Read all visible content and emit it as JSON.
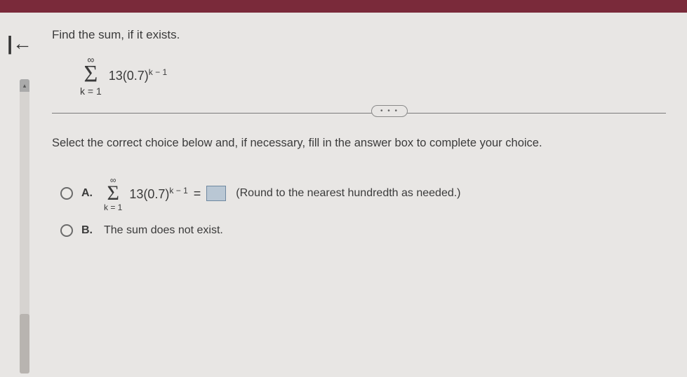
{
  "topbar": {
    "color": "#7a2a3a"
  },
  "nav": {
    "back_glyph": "|←"
  },
  "question": {
    "prompt": "Find the sum, if it exists.",
    "sigma": {
      "upper": "∞",
      "lower": "k = 1",
      "expr_base": "13(0.7)",
      "expr_exp": "k − 1"
    }
  },
  "divider": {
    "dots": "• • •"
  },
  "instruction": "Select the correct choice below and, if necessary, fill in the answer box to complete your choice.",
  "choices": {
    "a": {
      "label": "A.",
      "sigma": {
        "upper": "∞",
        "lower": "k = 1",
        "expr_base": "13(0.7)",
        "expr_exp": "k − 1"
      },
      "equals": "=",
      "hint": "(Round to the nearest hundredth as needed.)"
    },
    "b": {
      "label": "B.",
      "text": "The sum does not exist."
    }
  }
}
